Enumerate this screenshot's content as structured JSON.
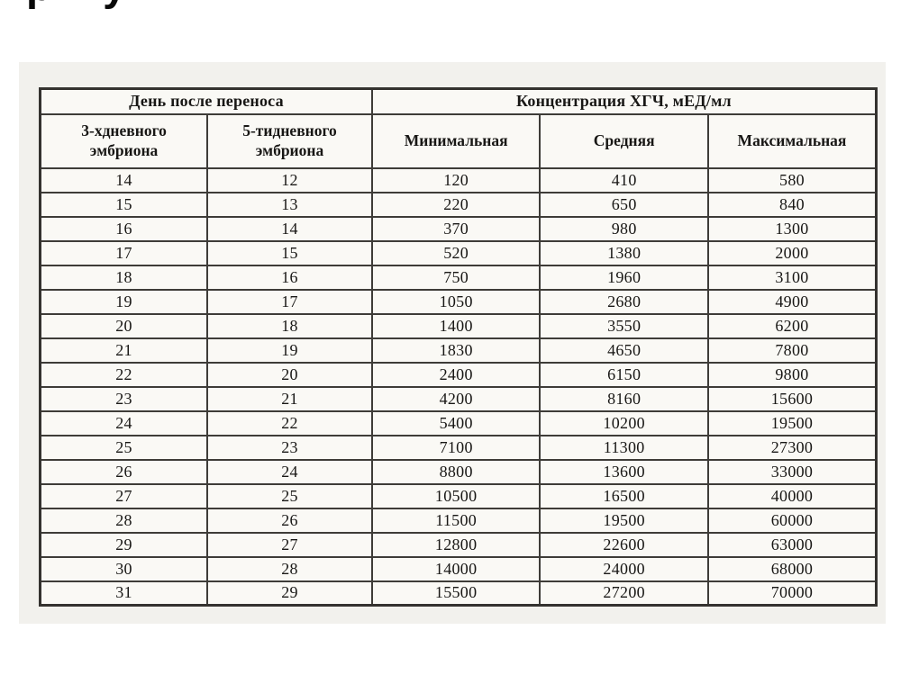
{
  "cropped_heading": {
    "text": "ру"
  },
  "table": {
    "group_headers": {
      "day": "День после переноса",
      "hcg": "Концентрация ХГЧ, мЕД/мл"
    },
    "column_headers": [
      "3-хдневного эмбриона",
      "5-тидневного эмбриона",
      "Минимальная",
      "Средняя",
      "Максимальная"
    ],
    "rows": [
      [
        "14",
        "12",
        "120",
        "410",
        "580"
      ],
      [
        "15",
        "13",
        "220",
        "650",
        "840"
      ],
      [
        "16",
        "14",
        "370",
        "980",
        "1300"
      ],
      [
        "17",
        "15",
        "520",
        "1380",
        "2000"
      ],
      [
        "18",
        "16",
        "750",
        "1960",
        "3100"
      ],
      [
        "19",
        "17",
        "1050",
        "2680",
        "4900"
      ],
      [
        "20",
        "18",
        "1400",
        "3550",
        "6200"
      ],
      [
        "21",
        "19",
        "1830",
        "4650",
        "7800"
      ],
      [
        "22",
        "20",
        "2400",
        "6150",
        "9800"
      ],
      [
        "23",
        "21",
        "4200",
        "8160",
        "15600"
      ],
      [
        "24",
        "22",
        "5400",
        "10200",
        "19500"
      ],
      [
        "25",
        "23",
        "7100",
        "11300",
        "27300"
      ],
      [
        "26",
        "24",
        "8800",
        "13600",
        "33000"
      ],
      [
        "27",
        "25",
        "10500",
        "16500",
        "40000"
      ],
      [
        "28",
        "26",
        "11500",
        "19500",
        "60000"
      ],
      [
        "29",
        "27",
        "12800",
        "22600",
        "63000"
      ],
      [
        "30",
        "28",
        "14000",
        "24000",
        "68000"
      ],
      [
        "31",
        "29",
        "15500",
        "27200",
        "70000"
      ]
    ]
  },
  "colors": {
    "scan_background": "#f2f1ed",
    "table_line": "#413f3b",
    "text": "#1d1c1a"
  }
}
